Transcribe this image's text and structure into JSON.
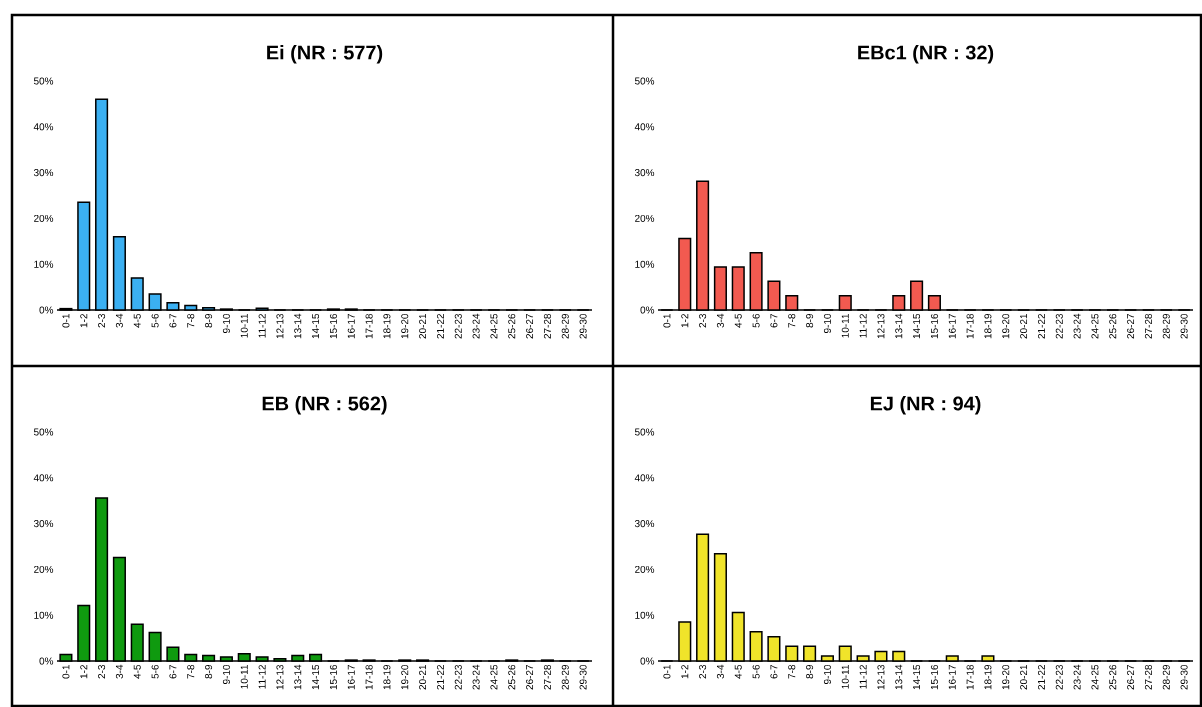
{
  "chart_data": [
    {
      "type": "bar",
      "title": "Ei (NR : 577)",
      "color": "#3bb0f2",
      "categories": [
        "0-1",
        "1-2",
        "2-3",
        "3-4",
        "4-5",
        "5-6",
        "6-7",
        "7-8",
        "8-9",
        "9-10",
        "10-11",
        "11-12",
        "12-13",
        "13-14",
        "14-15",
        "15-16",
        "16-17",
        "17-18",
        "18-19",
        "19-20",
        "20-21",
        "21-22",
        "22-23",
        "23-24",
        "24-25",
        "25-26",
        "26-27",
        "27-28",
        "28-29",
        "29-30"
      ],
      "values": [
        0.3,
        23.5,
        46,
        16,
        7,
        3.5,
        1.6,
        1.0,
        0.5,
        0.2,
        0,
        0.4,
        0,
        0,
        0,
        0.2,
        0.2,
        0,
        0,
        0,
        0,
        0,
        0,
        0,
        0,
        0,
        0,
        0,
        0,
        0
      ],
      "ylim": [
        0,
        50
      ],
      "yticks": [
        {
          "value": 0,
          "label": "0%"
        },
        {
          "value": 10,
          "label": "10%"
        },
        {
          "value": 20,
          "label": "20%"
        },
        {
          "value": 30,
          "label": "30%"
        },
        {
          "value": 40,
          "label": "40%"
        },
        {
          "value": 50,
          "label": "50%"
        }
      ]
    },
    {
      "type": "bar",
      "title": "EBc1 (NR : 32)",
      "color": "#f25a50",
      "categories": [
        "0-1",
        "1-2",
        "2-3",
        "3-4",
        "4-5",
        "5-6",
        "6-7",
        "7-8",
        "8-9",
        "9-10",
        "10-11",
        "11-12",
        "12-13",
        "13-14",
        "14-15",
        "15-16",
        "16-17",
        "17-18",
        "18-19",
        "19-20",
        "20-21",
        "21-22",
        "22-23",
        "23-24",
        "24-25",
        "25-26",
        "26-27",
        "27-28",
        "28-29",
        "29-30"
      ],
      "values": [
        0,
        15.6,
        28.1,
        9.4,
        9.4,
        12.5,
        6.3,
        3.1,
        0,
        0,
        3.1,
        0,
        0,
        3.1,
        6.3,
        3.1,
        0,
        0,
        0,
        0,
        0,
        0,
        0,
        0,
        0,
        0,
        0,
        0,
        0,
        0
      ],
      "ylim": [
        0,
        50
      ],
      "yticks": [
        {
          "value": 0,
          "label": "0%"
        },
        {
          "value": 10,
          "label": "10%"
        },
        {
          "value": 20,
          "label": "20%"
        },
        {
          "value": 30,
          "label": "30%"
        },
        {
          "value": 40,
          "label": "40%"
        },
        {
          "value": 50,
          "label": "50%"
        }
      ]
    },
    {
      "type": "bar",
      "title": "EB (NR : 562)",
      "color": "#0f9a0f",
      "categories": [
        "0-1",
        "1-2",
        "2-3",
        "3-4",
        "4-5",
        "5-6",
        "6-7",
        "7-8",
        "8-9",
        "9-10",
        "10-11",
        "11-12",
        "12-13",
        "13-14",
        "14-15",
        "15-16",
        "16-17",
        "17-18",
        "18-19",
        "19-20",
        "20-21",
        "21-22",
        "22-23",
        "23-24",
        "24-25",
        "25-26",
        "26-27",
        "27-28",
        "28-29",
        "29-30"
      ],
      "values": [
        1.4,
        12.1,
        35.6,
        22.6,
        8.0,
        6.2,
        3.0,
        1.4,
        1.2,
        0.9,
        1.6,
        0.9,
        0.5,
        1.2,
        1.4,
        0,
        0.2,
        0.2,
        0,
        0.2,
        0.2,
        0,
        0,
        0,
        0,
        0.2,
        0,
        0.2,
        0,
        0
      ],
      "ylim": [
        0,
        50
      ],
      "yticks": [
        {
          "value": 0,
          "label": "0%"
        },
        {
          "value": 10,
          "label": "10%"
        },
        {
          "value": 20,
          "label": "20%"
        },
        {
          "value": 30,
          "label": "30%"
        },
        {
          "value": 40,
          "label": "40%"
        },
        {
          "value": 50,
          "label": "50%"
        }
      ]
    },
    {
      "type": "bar",
      "title": "EJ (NR : 94)",
      "color": "#f0e42a",
      "categories": [
        "0-1",
        "1-2",
        "2-3",
        "3-4",
        "4-5",
        "5-6",
        "6-7",
        "7-8",
        "8-9",
        "9-10",
        "10-11",
        "11-12",
        "12-13",
        "13-14",
        "14-15",
        "15-16",
        "16-17",
        "17-18",
        "18-19",
        "19-20",
        "20-21",
        "21-22",
        "22-23",
        "23-24",
        "24-25",
        "25-26",
        "26-27",
        "27-28",
        "28-29",
        "29-30"
      ],
      "values": [
        0,
        8.5,
        27.7,
        23.4,
        10.6,
        6.4,
        5.3,
        3.2,
        3.2,
        1.1,
        3.2,
        1.1,
        2.1,
        2.1,
        0,
        0,
        1.1,
        0,
        1.1,
        0,
        0,
        0,
        0,
        0,
        0,
        0,
        0,
        0,
        0,
        0
      ],
      "ylim": [
        0,
        50
      ],
      "yticks": [
        {
          "value": 0,
          "label": "0%"
        },
        {
          "value": 10,
          "label": "10%"
        },
        {
          "value": 20,
          "label": "20%"
        },
        {
          "value": 30,
          "label": "30%"
        },
        {
          "value": 40,
          "label": "40%"
        },
        {
          "value": 50,
          "label": "50%"
        }
      ]
    }
  ]
}
